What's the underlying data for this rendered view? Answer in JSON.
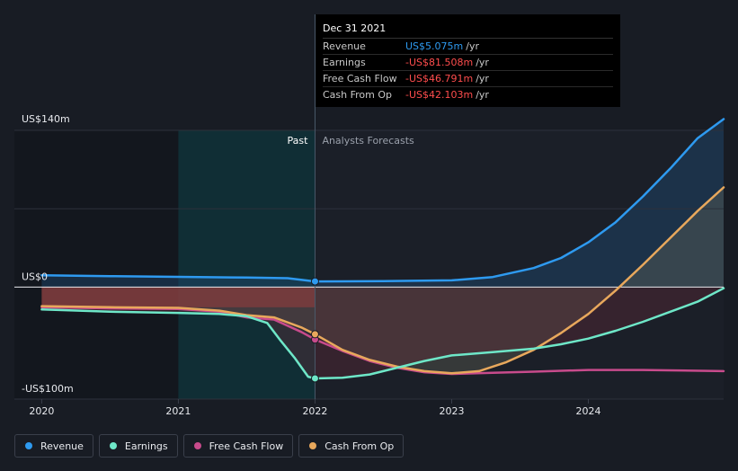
{
  "tooltip": {
    "date": "Dec 31 2021",
    "rows": [
      {
        "label": "Revenue",
        "value": "US$5.075m",
        "unit": "/yr",
        "color": "#2e9af0"
      },
      {
        "label": "Earnings",
        "value": "-US$81.508m",
        "unit": "/yr",
        "color": "#ff4d4d"
      },
      {
        "label": "Free Cash Flow",
        "value": "-US$46.791m",
        "unit": "/yr",
        "color": "#ff4d4d"
      },
      {
        "label": "Cash From Op",
        "value": "-US$42.103m",
        "unit": "/yr",
        "color": "#ff4d4d"
      }
    ]
  },
  "legend": [
    {
      "label": "Revenue",
      "color": "#2e9af0"
    },
    {
      "label": "Earnings",
      "color": "#6ee7c8"
    },
    {
      "label": "Free Cash Flow",
      "color": "#c84b8c"
    },
    {
      "label": "Cash From Op",
      "color": "#e8a85c"
    }
  ],
  "chart_data": {
    "type": "line",
    "ylim": [
      -100,
      140
    ],
    "xlim": [
      2019.8,
      2024.99
    ],
    "y_tick_labels": [
      {
        "value": 140,
        "label": "US$140m"
      },
      {
        "value": 0,
        "label": "US$0"
      },
      {
        "value": -100,
        "label": "-US$100m"
      }
    ],
    "x_ticks": [
      {
        "value": 2020,
        "label": "2020"
      },
      {
        "value": 2021,
        "label": "2021"
      },
      {
        "value": 2022,
        "label": "2022"
      },
      {
        "value": 2023,
        "label": "2023"
      },
      {
        "value": 2024,
        "label": "2024"
      }
    ],
    "regions": {
      "past_label": "Past",
      "forecast_label": "Analysts Forecasts",
      "divider_x": 2022,
      "highlight_start_x": 2021
    },
    "series": [
      {
        "name": "Revenue",
        "color": "#2e9af0",
        "points": [
          [
            2020.0,
            10.5
          ],
          [
            2020.5,
            9.8
          ],
          [
            2021.0,
            9.2
          ],
          [
            2021.5,
            8.5
          ],
          [
            2021.8,
            8
          ],
          [
            2022.0,
            5.1
          ],
          [
            2022.5,
            5.3
          ],
          [
            2023.0,
            6
          ],
          [
            2023.3,
            9
          ],
          [
            2023.6,
            17
          ],
          [
            2023.8,
            26
          ],
          [
            2024.0,
            40
          ],
          [
            2024.2,
            58
          ],
          [
            2024.4,
            81
          ],
          [
            2024.6,
            106
          ],
          [
            2024.8,
            133
          ],
          [
            2024.99,
            150
          ]
        ]
      },
      {
        "name": "Earnings",
        "color": "#6ee7c8",
        "points": [
          [
            2020.0,
            -20
          ],
          [
            2020.5,
            -22
          ],
          [
            2021.0,
            -23
          ],
          [
            2021.3,
            -24
          ],
          [
            2021.5,
            -26
          ],
          [
            2021.65,
            -32
          ],
          [
            2021.75,
            -48
          ],
          [
            2021.85,
            -63
          ],
          [
            2021.95,
            -80
          ],
          [
            2022.0,
            -81.5
          ],
          [
            2022.2,
            -81
          ],
          [
            2022.4,
            -78
          ],
          [
            2022.6,
            -72
          ],
          [
            2022.8,
            -66
          ],
          [
            2023.0,
            -61
          ],
          [
            2023.3,
            -58
          ],
          [
            2023.6,
            -55
          ],
          [
            2023.8,
            -51
          ],
          [
            2024.0,
            -46
          ],
          [
            2024.2,
            -39
          ],
          [
            2024.4,
            -31
          ],
          [
            2024.6,
            -22
          ],
          [
            2024.8,
            -13
          ],
          [
            2024.99,
            -1
          ]
        ]
      },
      {
        "name": "Free Cash Flow",
        "color": "#c84b8c",
        "points": [
          [
            2020.0,
            -18
          ],
          [
            2020.5,
            -19
          ],
          [
            2021.0,
            -19.5
          ],
          [
            2021.3,
            -22
          ],
          [
            2021.5,
            -27
          ],
          [
            2021.7,
            -29
          ],
          [
            2021.9,
            -40
          ],
          [
            2022.0,
            -46.8
          ],
          [
            2022.2,
            -57
          ],
          [
            2022.4,
            -66
          ],
          [
            2022.6,
            -72
          ],
          [
            2022.8,
            -76
          ],
          [
            2023.0,
            -77.5
          ],
          [
            2023.3,
            -76.5
          ],
          [
            2023.6,
            -75.5
          ],
          [
            2024.0,
            -74
          ],
          [
            2024.4,
            -74
          ],
          [
            2024.99,
            -75
          ]
        ]
      },
      {
        "name": "Cash From Op",
        "color": "#e8a85c",
        "points": [
          [
            2020.0,
            -17
          ],
          [
            2020.5,
            -18
          ],
          [
            2021.0,
            -18.5
          ],
          [
            2021.3,
            -21
          ],
          [
            2021.5,
            -25
          ],
          [
            2021.7,
            -27
          ],
          [
            2021.9,
            -36
          ],
          [
            2022.0,
            -42.1
          ],
          [
            2022.2,
            -56
          ],
          [
            2022.4,
            -65
          ],
          [
            2022.6,
            -71
          ],
          [
            2022.8,
            -75
          ],
          [
            2023.0,
            -77
          ],
          [
            2023.2,
            -75
          ],
          [
            2023.4,
            -67
          ],
          [
            2023.6,
            -56
          ],
          [
            2023.8,
            -41
          ],
          [
            2024.0,
            -24
          ],
          [
            2024.2,
            -3
          ],
          [
            2024.4,
            20
          ],
          [
            2024.6,
            44
          ],
          [
            2024.8,
            68
          ],
          [
            2024.99,
            89
          ]
        ]
      }
    ]
  }
}
